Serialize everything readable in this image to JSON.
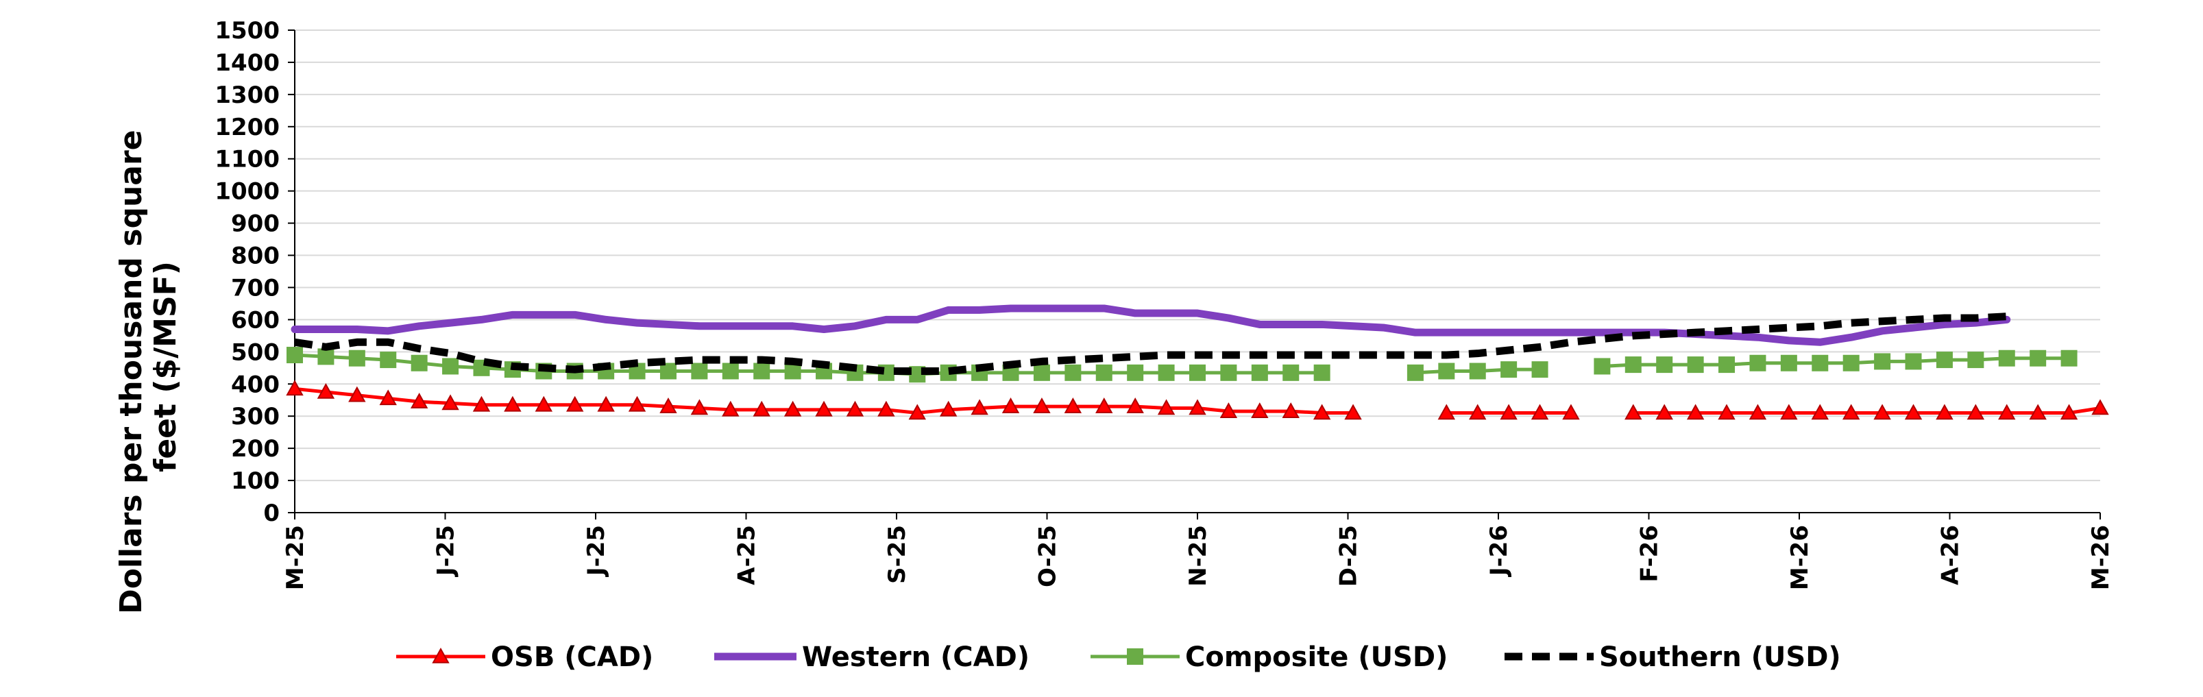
{
  "chart_data": {
    "type": "line",
    "ylabel": "Dollars per thousand square feet ($/MSF)",
    "ylim": [
      0,
      1500
    ],
    "y_ticks": [
      0,
      100,
      200,
      300,
      400,
      500,
      600,
      700,
      800,
      900,
      1000,
      1100,
      1200,
      1300,
      1400,
      1500
    ],
    "x_tick_labels": [
      "M-25",
      "J-25",
      "J-25",
      "A-25",
      "S-25",
      "O-25",
      "N-25",
      "D-25",
      "J-26",
      "F-26",
      "M-26",
      "A-26",
      "M-26"
    ],
    "grid": "horizontal",
    "legend_position": "bottom",
    "series": [
      {
        "name": "OSB (CAD)",
        "color": "#ff0000",
        "style": "solid-triangle-markers",
        "values": [
          385,
          375,
          365,
          355,
          345,
          340,
          335,
          335,
          335,
          335,
          335,
          335,
          330,
          325,
          320,
          320,
          320,
          320,
          320,
          320,
          310,
          320,
          325,
          330,
          330,
          330,
          330,
          330,
          325,
          325,
          315,
          315,
          315,
          310,
          310,
          null,
          null,
          310,
          310,
          310,
          310,
          310,
          null,
          310,
          310,
          310,
          310,
          310,
          310,
          310,
          310,
          310,
          310,
          310,
          310,
          310,
          310,
          310,
          325
        ]
      },
      {
        "name": "Western (CAD)",
        "color": "#7f3fbf",
        "style": "thick-solid",
        "values": [
          570,
          570,
          570,
          565,
          580,
          590,
          600,
          615,
          615,
          615,
          600,
          590,
          585,
          580,
          580,
          580,
          580,
          570,
          580,
          600,
          600,
          630,
          630,
          635,
          635,
          635,
          635,
          620,
          620,
          620,
          605,
          585,
          585,
          585,
          580,
          575,
          560,
          560,
          560,
          560,
          560,
          560,
          560,
          560,
          560,
          555,
          550,
          545,
          535,
          530,
          545,
          565,
          575,
          585,
          590,
          600
        ]
      },
      {
        "name": "Composite (USD)",
        "color": "#6aac46",
        "style": "solid-square-markers",
        "values": [
          490,
          485,
          480,
          475,
          465,
          455,
          450,
          445,
          440,
          440,
          440,
          440,
          440,
          440,
          440,
          440,
          440,
          440,
          435,
          435,
          430,
          435,
          435,
          435,
          435,
          435,
          435,
          435,
          435,
          435,
          435,
          435,
          435,
          435,
          null,
          null,
          435,
          440,
          440,
          445,
          445,
          null,
          455,
          460,
          460,
          460,
          460,
          465,
          465,
          465,
          465,
          470,
          470,
          475,
          475,
          480,
          480,
          480
        ]
      },
      {
        "name": "Southern  (USD)",
        "color": "#000000",
        "style": "thick-dashed",
        "values": [
          530,
          515,
          530,
          530,
          510,
          495,
          470,
          455,
          450,
          445,
          455,
          465,
          470,
          475,
          475,
          475,
          470,
          460,
          450,
          440,
          440,
          440,
          450,
          460,
          470,
          475,
          480,
          485,
          490,
          490,
          490,
          490,
          490,
          490,
          490,
          490,
          490,
          490,
          495,
          505,
          515,
          530,
          540,
          550,
          555,
          560,
          565,
          570,
          575,
          580,
          590,
          595,
          600,
          605,
          605,
          610
        ]
      }
    ]
  }
}
